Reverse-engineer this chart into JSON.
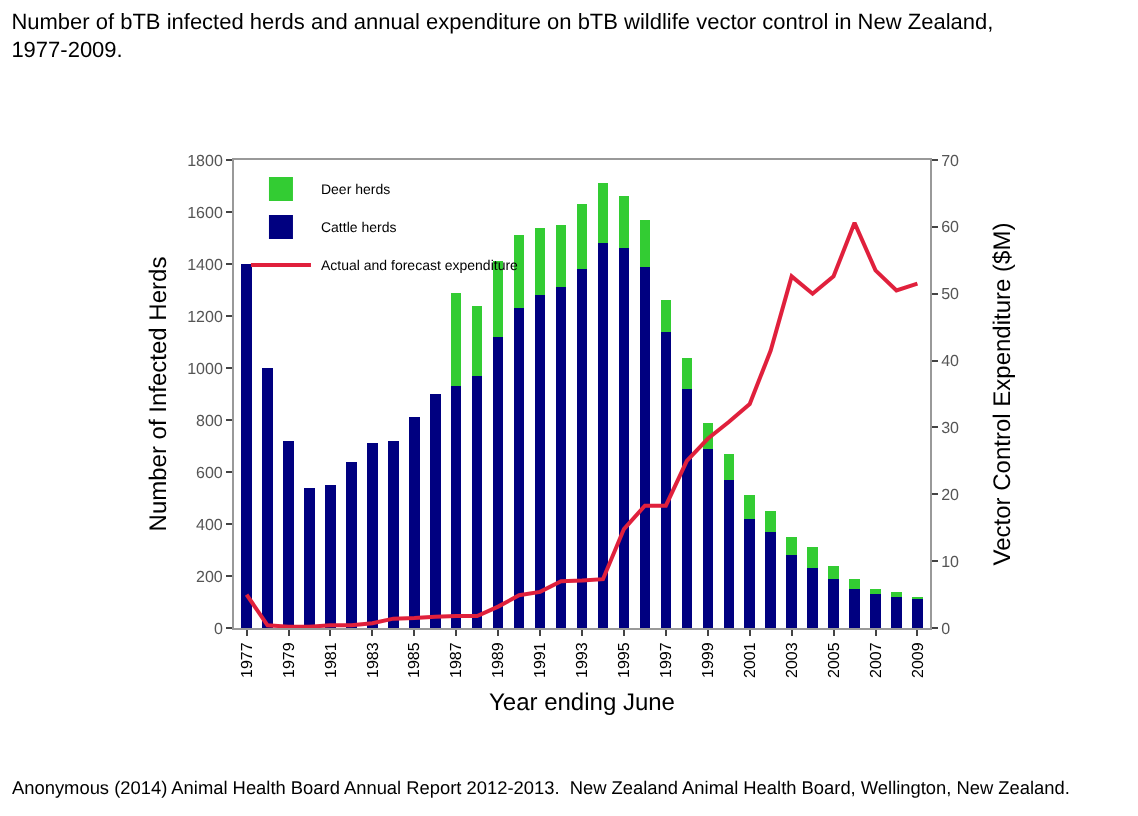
{
  "chart_data": {
    "type": "bar",
    "title": "Number of bTB infected herds and annual expenditure on bTB wildlife vector control in New Zealand, 1977-2009.",
    "xlabel": "Year ending June",
    "ylabel": "Number of Infected Herds",
    "y2label": "Vector Control Expenditure ($M)",
    "annotations": [
      "Anonymous (2014) Animal Health Board Annual Report 2012-2013.  New Zealand Animal Health Board, Wellington, New Zealand."
    ],
    "categories": [
      "1977",
      null,
      "1979",
      null,
      "1981",
      null,
      "1983",
      null,
      "1985",
      null,
      "1987",
      null,
      "1989",
      null,
      "1991",
      null,
      "1993",
      null,
      "1995",
      null,
      "1997",
      null,
      "1999",
      null,
      "2001",
      null,
      "2003",
      null,
      "2005",
      null,
      "2007",
      null,
      "2009"
    ],
    "stacked": true,
    "series": [
      {
        "name": "Cattle herds",
        "color": "#000080",
        "values": [
          1400,
          1000,
          720,
          540,
          550,
          640,
          710,
          720,
          810,
          900,
          930,
          970,
          1120,
          1230,
          1280,
          1310,
          1380,
          1480,
          1460,
          1390,
          1140,
          920,
          690,
          570,
          420,
          370,
          280,
          230,
          190,
          150,
          130,
          120,
          110
        ]
      },
      {
        "name": "Deer herds",
        "color": "#33cc33",
        "values": [
          0,
          0,
          0,
          0,
          0,
          0,
          0,
          0,
          0,
          0,
          360,
          270,
          290,
          280,
          260,
          240,
          250,
          230,
          200,
          180,
          120,
          120,
          100,
          100,
          90,
          80,
          70,
          80,
          50,
          40,
          20,
          20,
          10
        ]
      },
      {
        "name": "Actual and forecast expenditure",
        "type": "line",
        "axis": "y2",
        "color": "#e0203c",
        "marker": "none",
        "values": [
          5,
          0.4,
          0.2,
          0.2,
          0.4,
          0.4,
          0.7,
          1.4,
          1.5,
          1.7,
          1.8,
          1.8,
          3.2,
          4.9,
          5.4,
          7,
          7.1,
          7.3,
          14.8,
          18.3,
          18.3,
          25,
          28.3,
          30.8,
          33.5,
          41.5,
          52.6,
          50,
          52.6,
          60.6,
          53.5,
          50.5,
          51.5
        ]
      }
    ],
    "ylim": [
      0,
      1800
    ],
    "yticks": [
      0,
      200,
      400,
      600,
      800,
      1000,
      1200,
      1400,
      1600,
      1800
    ],
    "y2lim": [
      0,
      70
    ],
    "y2ticks": [
      0,
      10,
      20,
      30,
      40,
      50,
      60,
      70
    ],
    "grid": false,
    "legend": "top left"
  }
}
